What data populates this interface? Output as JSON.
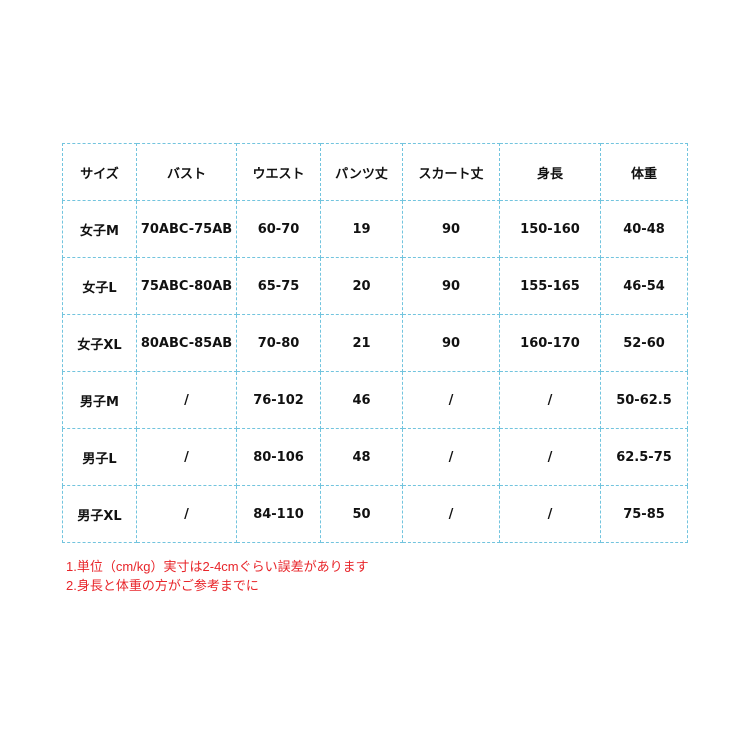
{
  "table": {
    "headers": [
      "サイズ",
      "バスト",
      "ウエスト",
      "パンツ丈",
      "スカート丈",
      "身長",
      "体重"
    ],
    "rows": [
      [
        "女子M",
        "70ABC-75AB",
        "60-70",
        "19",
        "90",
        "150-160",
        "40-48"
      ],
      [
        "女子L",
        "75ABC-80AB",
        "65-75",
        "20",
        "90",
        "155-165",
        "46-54"
      ],
      [
        "女子XL",
        "80ABC-85AB",
        "70-80",
        "21",
        "90",
        "160-170",
        "52-60"
      ],
      [
        "男子M",
        "/",
        "76-102",
        "46",
        "/",
        "/",
        "50-62.5"
      ],
      [
        "男子L",
        "/",
        "80-106",
        "48",
        "/",
        "/",
        "62.5-75"
      ],
      [
        "男子XL",
        "/",
        "84-110",
        "50",
        "/",
        "/",
        "75-85"
      ]
    ]
  },
  "notes": [
    "1.単位（cm/kg）実寸は2-4cmぐらい誤差があります",
    "2.身長と体重の方がご参考までに"
  ],
  "colors": {
    "border": "#72c4de",
    "note_text": "#e8252a"
  }
}
